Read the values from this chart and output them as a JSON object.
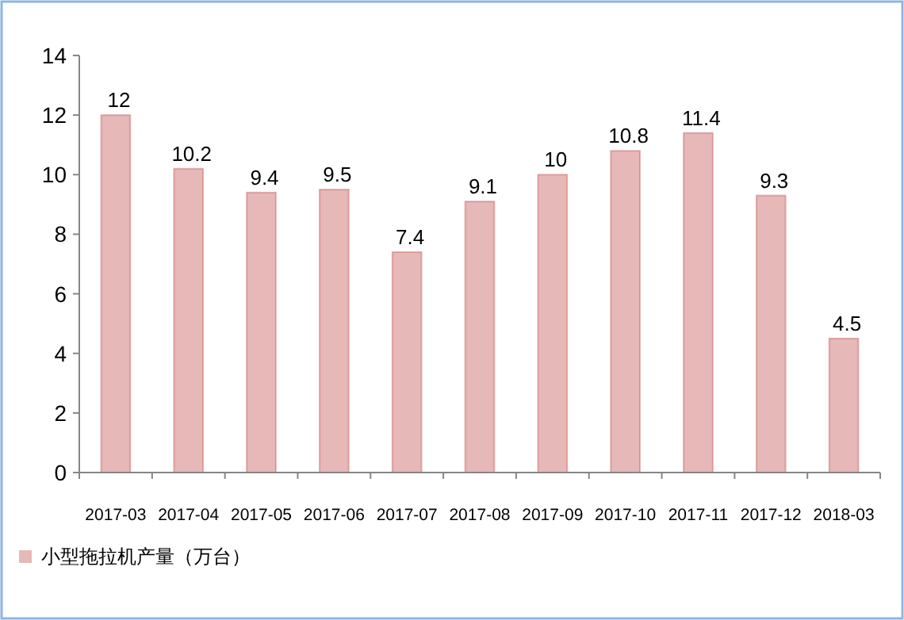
{
  "chart_data": {
    "type": "bar",
    "categories": [
      "2017-03",
      "2017-04",
      "2017-05",
      "2017-06",
      "2017-07",
      "2017-08",
      "2017-09",
      "2017-10",
      "2017-11",
      "2017-12",
      "2018-03"
    ],
    "series": [
      {
        "name": "小型拖拉机产量（万台）",
        "color": "#e6b8b7",
        "values": [
          12,
          10.2,
          9.4,
          9.5,
          7.4,
          9.1,
          10,
          10.8,
          11.4,
          9.3,
          4.5
        ]
      }
    ],
    "ylim": [
      0,
      14
    ],
    "yticks": [
      0,
      2,
      4,
      6,
      8,
      10,
      12,
      14
    ],
    "data_labels": true,
    "legend": "bottom left",
    "grid": false
  }
}
